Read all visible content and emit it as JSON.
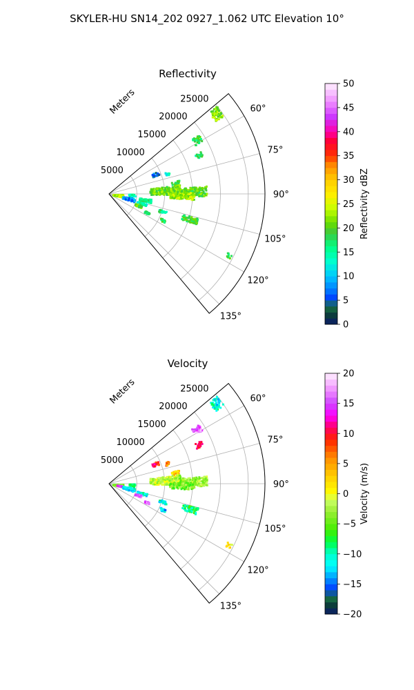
{
  "figure": {
    "title": "SKYLER-HU  SN14_202  0927_1.062 UTC Elevation 10°"
  },
  "chart_data": [
    {
      "type": "polar-sector",
      "title": "Reflectivity",
      "r_axis_label": "Meters",
      "r_ticks": [
        "5000",
        "10000",
        "15000",
        "20000",
        "25000"
      ],
      "r_tick_values": [
        5000,
        10000,
        15000,
        20000,
        25000
      ],
      "r_max": 28000,
      "theta_range_deg": [
        50,
        140
      ],
      "theta_ticks": [
        "60°",
        "75°",
        "90°",
        "105°",
        "120°",
        "135°"
      ],
      "theta_tick_values": [
        60,
        75,
        90,
        105,
        120,
        135
      ],
      "grid": true,
      "colorbar": {
        "label": "Reflectivity dBZ",
        "min": 0,
        "max": 50,
        "ticks": [
          "0",
          "5",
          "10",
          "15",
          "20",
          "25",
          "30",
          "35",
          "40",
          "45",
          "50"
        ],
        "tick_values": [
          0,
          5,
          10,
          15,
          20,
          25,
          30,
          35,
          40,
          45,
          50
        ]
      },
      "echo_cells": [
        {
          "az": 53,
          "r": 24000,
          "value": 22,
          "w": 1800,
          "h": 5
        },
        {
          "az": 58,
          "r": 18500,
          "value": 18,
          "w": 1500,
          "h": 4
        },
        {
          "az": 66,
          "r": 17500,
          "value": 17,
          "w": 1200,
          "h": 3
        },
        {
          "az": 66,
          "r": 9000,
          "value": 6,
          "w": 1200,
          "h": 4
        },
        {
          "az": 70,
          "r": 11000,
          "value": 14,
          "w": 700,
          "h": 3
        },
        {
          "az": 80,
          "r": 12000,
          "value": 19,
          "w": 1400,
          "h": 3
        },
        {
          "az": 86,
          "r": 10000,
          "value": 21,
          "w": 5500,
          "h": 8
        },
        {
          "az": 88,
          "r": 15000,
          "value": 20,
          "w": 5000,
          "h": 6
        },
        {
          "az": 91,
          "r": 13000,
          "value": 23,
          "w": 4500,
          "h": 5
        },
        {
          "az": 92,
          "r": 4000,
          "value": 14,
          "w": 1200,
          "h": 6
        },
        {
          "az": 96,
          "r": 1500,
          "value": 24,
          "w": 1800,
          "h": 12
        },
        {
          "az": 99,
          "r": 6500,
          "value": 16,
          "w": 2200,
          "h": 5
        },
        {
          "az": 103,
          "r": 3500,
          "value": 8,
          "w": 2200,
          "h": 8
        },
        {
          "az": 106,
          "r": 6000,
          "value": 14,
          "w": 1800,
          "h": 4
        },
        {
          "az": 108,
          "r": 10000,
          "value": 16,
          "w": 1400,
          "h": 3
        },
        {
          "az": 107,
          "r": 15000,
          "value": 19,
          "w": 2800,
          "h": 4
        },
        {
          "az": 111,
          "r": 5500,
          "value": 20,
          "w": 1200,
          "h": 4
        },
        {
          "az": 116,
          "r": 7500,
          "value": 16,
          "w": 1000,
          "h": 3
        },
        {
          "az": 116,
          "r": 10500,
          "value": 18,
          "w": 1000,
          "h": 3
        },
        {
          "az": 117,
          "r": 24000,
          "value": 18,
          "w": 900,
          "h": 2
        }
      ]
    },
    {
      "type": "polar-sector",
      "title": "Velocity",
      "r_axis_label": "Meters",
      "r_ticks": [
        "5000",
        "10000",
        "15000",
        "20000",
        "25000"
      ],
      "r_tick_values": [
        5000,
        10000,
        15000,
        20000,
        25000
      ],
      "r_max": 28000,
      "theta_range_deg": [
        50,
        140
      ],
      "theta_ticks": [
        "60°",
        "75°",
        "90°",
        "105°",
        "120°",
        "135°"
      ],
      "theta_tick_values": [
        60,
        75,
        90,
        105,
        120,
        135
      ],
      "grid": true,
      "colorbar": {
        "label": "Velocity (m/s)",
        "min": -20,
        "max": 20,
        "ticks": [
          "−20",
          "−15",
          "−10",
          "−5",
          "0",
          "5",
          "10",
          "15",
          "20"
        ],
        "tick_values": [
          -20,
          -15,
          -10,
          -5,
          0,
          5,
          10,
          15,
          20
        ]
      },
      "echo_cells": [
        {
          "az": 53,
          "r": 24000,
          "value": -11,
          "w": 1800,
          "h": 5
        },
        {
          "az": 58,
          "r": 18500,
          "value": 16,
          "w": 1500,
          "h": 4
        },
        {
          "az": 66,
          "r": 17500,
          "value": 10,
          "w": 1200,
          "h": 3
        },
        {
          "az": 66,
          "r": 9000,
          "value": 10,
          "w": 1200,
          "h": 4
        },
        {
          "az": 70,
          "r": 11000,
          "value": 6,
          "w": 700,
          "h": 3
        },
        {
          "az": 80,
          "r": 12000,
          "value": 3,
          "w": 1400,
          "h": 3
        },
        {
          "az": 86,
          "r": 10000,
          "value": -2,
          "w": 5500,
          "h": 8
        },
        {
          "az": 88,
          "r": 15000,
          "value": -3,
          "w": 5000,
          "h": 6
        },
        {
          "az": 91,
          "r": 13000,
          "value": -4,
          "w": 4500,
          "h": 5
        },
        {
          "az": 92,
          "r": 4000,
          "value": -9,
          "w": 1200,
          "h": 6
        },
        {
          "az": 96,
          "r": 1500,
          "value": -4,
          "w": 1800,
          "h": 12
        },
        {
          "az": 99,
          "r": 1800,
          "value": 15,
          "w": 1000,
          "h": 5
        },
        {
          "az": 103,
          "r": 3500,
          "value": -12,
          "w": 2200,
          "h": 8
        },
        {
          "az": 106,
          "r": 6000,
          "value": -11,
          "w": 1800,
          "h": 4
        },
        {
          "az": 108,
          "r": 10000,
          "value": -11,
          "w": 1400,
          "h": 3
        },
        {
          "az": 107,
          "r": 15000,
          "value": -8,
          "w": 2800,
          "h": 4
        },
        {
          "az": 111,
          "r": 5500,
          "value": 15,
          "w": 1200,
          "h": 4
        },
        {
          "az": 116,
          "r": 7500,
          "value": 16,
          "w": 1000,
          "h": 3
        },
        {
          "az": 116,
          "r": 10500,
          "value": -13,
          "w": 1000,
          "h": 3
        },
        {
          "az": 117,
          "r": 24000,
          "value": 2,
          "w": 900,
          "h": 2
        }
      ]
    }
  ]
}
